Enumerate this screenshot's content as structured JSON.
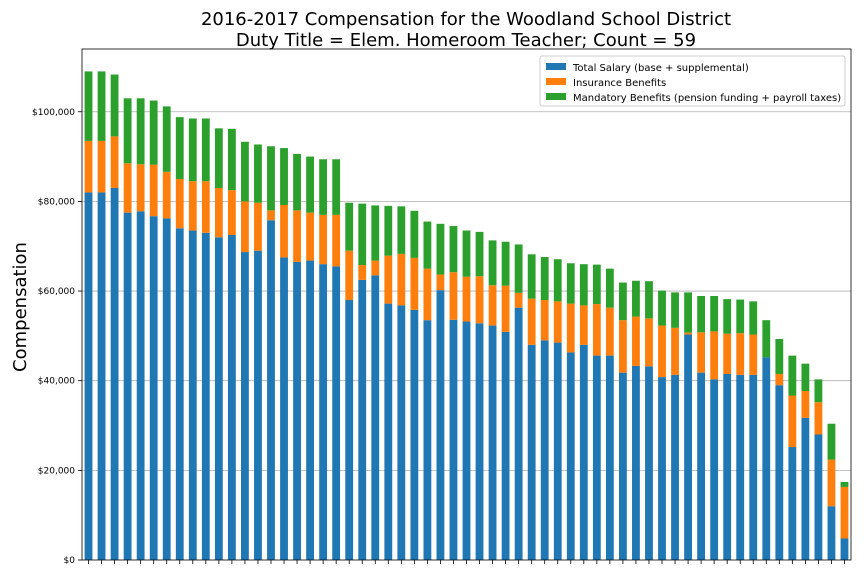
{
  "chart_data": {
    "type": "bar",
    "stacked": true,
    "title": [
      "2016-2017 Compensation for the Woodland School District",
      "Duty Title = Elem. Homeroom Teacher; Count = 59"
    ],
    "xlabel": "",
    "ylabel": "Compensation",
    "ylim": [
      0,
      114000
    ],
    "yticks": [
      0,
      20000,
      40000,
      60000,
      80000,
      100000
    ],
    "ytick_labels": [
      "$0",
      "$20,000",
      "$40,000",
      "$60,000",
      "$80,000",
      "$100,000"
    ],
    "grid": "horizontal",
    "legend_position": "top-right",
    "series": [
      {
        "name": "Total Salary (base + supplemental)",
        "color": "#1f77b4",
        "values": [
          82000,
          82000,
          83000,
          77500,
          77800,
          76700,
          76200,
          74000,
          73500,
          73000,
          72000,
          72500,
          68700,
          69000,
          75800,
          67500,
          66500,
          66800,
          66000,
          65500,
          58000,
          62500,
          63500,
          57200,
          56800,
          55800,
          53500,
          60200,
          53600,
          53200,
          52800,
          52300,
          50900,
          56300,
          48000,
          49000,
          48500,
          46300,
          48000,
          45600,
          45600,
          41800,
          43300,
          43200,
          40800,
          41300,
          50300,
          41800,
          40300,
          41500,
          41300,
          41300,
          45200,
          39000,
          25200,
          31700,
          28000,
          12000,
          4800
        ],
        "display_values": []
      },
      {
        "name": "Insurance Benefits",
        "color": "#ff7f0e",
        "values": [
          11500,
          11500,
          11500,
          11000,
          10500,
          11500,
          10400,
          11000,
          11000,
          11500,
          11000,
          10000,
          11300,
          10700,
          2200,
          11700,
          11500,
          10700,
          11000,
          11500,
          11000,
          3300,
          3300,
          10700,
          11500,
          11600,
          11500,
          3500,
          10600,
          10000,
          10500,
          9000,
          10300,
          3300,
          10300,
          9000,
          9200,
          10900,
          8800,
          11500,
          10700,
          11700,
          11000,
          10700,
          11500,
          10500,
          400,
          9000,
          10700,
          9000,
          9300,
          9000,
          0,
          2500,
          11500,
          6000,
          7200,
          10400,
          11500
        ]
      },
      {
        "name": "Mandatory Benefits (pension funding + payroll taxes)",
        "color": "#2ca02c",
        "values": [
          15500,
          15500,
          13800,
          14500,
          14700,
          14300,
          14600,
          13800,
          14000,
          14000,
          13300,
          13700,
          13300,
          13000,
          14300,
          12700,
          12600,
          12500,
          12400,
          12400,
          10700,
          13700,
          12300,
          11100,
          10600,
          10500,
          10500,
          11300,
          10300,
          10300,
          9900,
          10000,
          9800,
          10800,
          9900,
          9600,
          9400,
          9000,
          9200,
          8800,
          8700,
          8400,
          8000,
          8300,
          7800,
          7900,
          9000,
          8100,
          7900,
          7700,
          7500,
          7400,
          8300,
          7800,
          8900,
          6100,
          5100,
          8000,
          1100
        ]
      }
    ]
  }
}
